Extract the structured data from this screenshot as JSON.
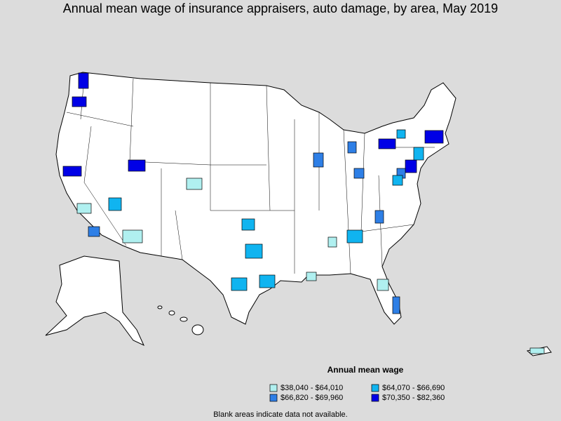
{
  "title": "Annual mean wage of insurance appraisers, auto damage, by area, May 2019",
  "legend": {
    "title": "Annual mean wage",
    "items": [
      {
        "label": "$38,040 - $64,010",
        "color": "#b0f0f0"
      },
      {
        "label": "$64,070 - $66,690",
        "color": "#10b4f0"
      },
      {
        "label": "$66,820 - $69,960",
        "color": "#2e7fe6"
      },
      {
        "label": "$70,350 - $82,360",
        "color": "#0000e6"
      }
    ]
  },
  "footnote": "Blank areas indicate data not available."
}
